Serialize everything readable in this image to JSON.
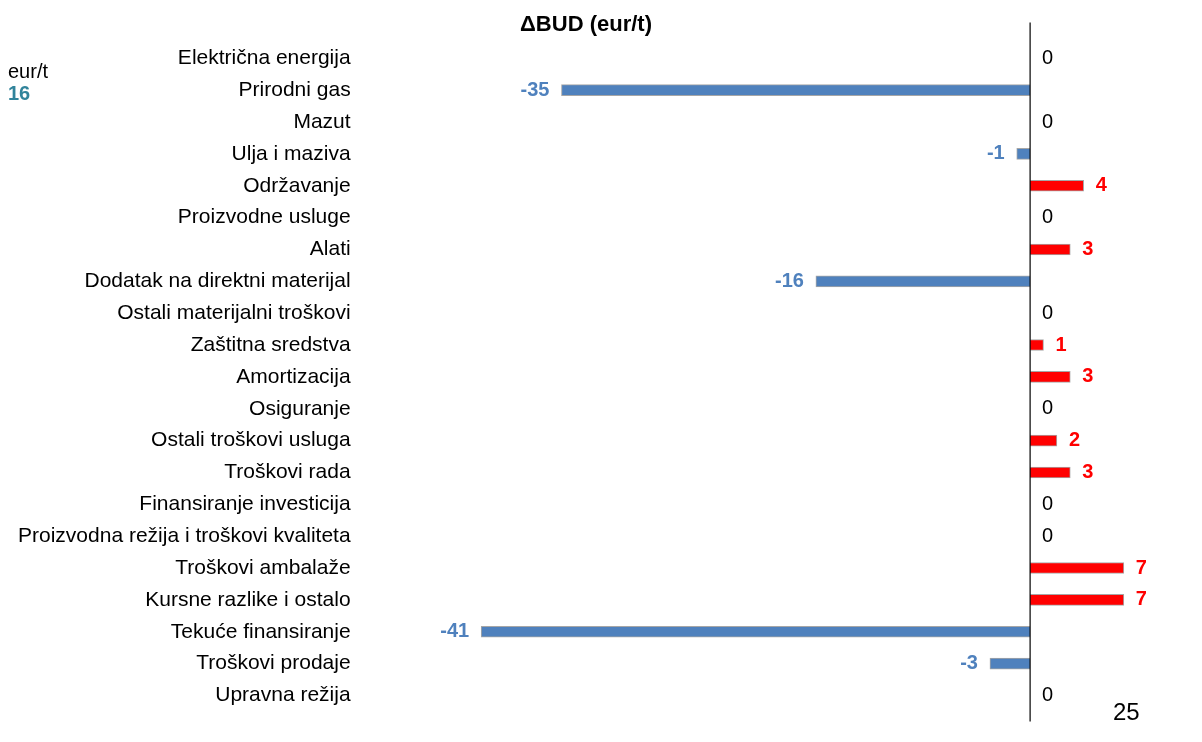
{
  "chart_data": {
    "type": "bar",
    "orientation": "horizontal",
    "title": "ΔBUD (eur/t)",
    "categories": [
      "Električna energija",
      "Prirodni gas",
      "Mazut",
      "Ulja i maziva",
      "Održavanje",
      "Proizvodne usluge",
      "Alati",
      "Dodatak na direktni materijal",
      "Ostali materijalni troškovi",
      "Zaštitna sredstva",
      "Amortizacija",
      "Osiguranje",
      "Ostali troškovi usluga",
      "Troškovi rada",
      "Finansiranje investicija",
      "Proizvodna režija i troškovi kvaliteta",
      "Troškovi ambalaže",
      "Kursne razlike i ostalo",
      "Tekuće finansiranje",
      "Troškovi prodaje",
      "Upravna režija"
    ],
    "values": [
      0,
      -35,
      0,
      -1,
      4,
      0,
      3,
      -16,
      0,
      1,
      3,
      0,
      2,
      3,
      0,
      0,
      7,
      7,
      -41,
      -3,
      0
    ],
    "colors": [
      "#000000",
      "#4f81bd",
      "#000000",
      "#4f81bd",
      "#ff0000",
      "#000000",
      "#ff0000",
      "#4f81bd",
      "#000000",
      "#ff0000",
      "#ff0000",
      "#000000",
      "#ff0000",
      "#ff0000",
      "#000000",
      "#000000",
      "#ff0000",
      "#ff0000",
      "#4f81bd",
      "#4f81bd",
      "#000000"
    ],
    "tick_labels": "y",
    "legend": false,
    "data_labels": true,
    "annotations": [
      "eur/t",
      "16",
      "25"
    ]
  }
}
